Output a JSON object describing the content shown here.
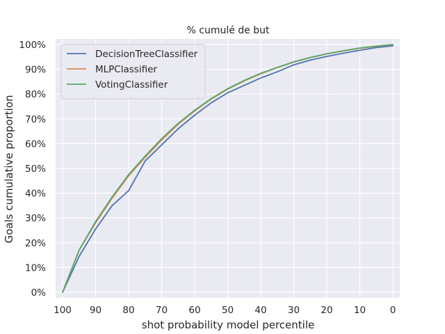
{
  "chart_data": {
    "type": "line",
    "title": "% cumulé de but",
    "xlabel": "shot probability model percentile",
    "ylabel": "Goals cumulative proportion",
    "xlim": [
      100,
      0
    ],
    "ylim": [
      0,
      100
    ],
    "x_ticks": [
      100,
      90,
      80,
      70,
      60,
      50,
      40,
      30,
      20,
      10,
      0
    ],
    "x_tick_labels": [
      "100",
      "90",
      "80",
      "70",
      "60",
      "50",
      "40",
      "30",
      "20",
      "10",
      "0"
    ],
    "y_ticks": [
      0,
      10,
      20,
      30,
      40,
      50,
      60,
      70,
      80,
      90,
      100
    ],
    "y_tick_labels": [
      "0%",
      "10%",
      "20%",
      "30%",
      "40%",
      "50%",
      "60%",
      "70%",
      "80%",
      "90%",
      "100%"
    ],
    "grid": true,
    "legend_position": "top-left",
    "colors": {
      "background": "#eaeaf2",
      "grid": "#ffffff"
    },
    "x": [
      100,
      95,
      90,
      85,
      80,
      75,
      70,
      65,
      60,
      55,
      50,
      45,
      40,
      35,
      30,
      25,
      20,
      15,
      10,
      5,
      0
    ],
    "series": [
      {
        "name": "DecisionTreeClassifier",
        "color": "#4c72b0",
        "values": [
          0,
          14.5,
          25.5,
          35.0,
          41.0,
          53.0,
          59.5,
          66.0,
          71.5,
          76.5,
          80.5,
          83.5,
          86.5,
          89.0,
          91.8,
          93.7,
          95.2,
          96.5,
          97.7,
          98.8,
          99.5
        ]
      },
      {
        "name": "MLPClassifier",
        "color": "#dd8452",
        "values": [
          0,
          17.0,
          28.0,
          38.0,
          47.0,
          54.5,
          61.5,
          67.8,
          73.2,
          78.0,
          82.0,
          85.3,
          88.2,
          90.7,
          92.9,
          94.7,
          96.2,
          97.4,
          98.5,
          99.3,
          99.9
        ]
      },
      {
        "name": "VotingClassifier",
        "color": "#55a868",
        "values": [
          0,
          17.0,
          28.5,
          38.5,
          47.5,
          55.0,
          62.0,
          68.2,
          73.5,
          78.2,
          82.2,
          85.5,
          88.4,
          90.8,
          93.0,
          94.8,
          96.3,
          97.5,
          98.6,
          99.4,
          100.0
        ]
      }
    ]
  }
}
